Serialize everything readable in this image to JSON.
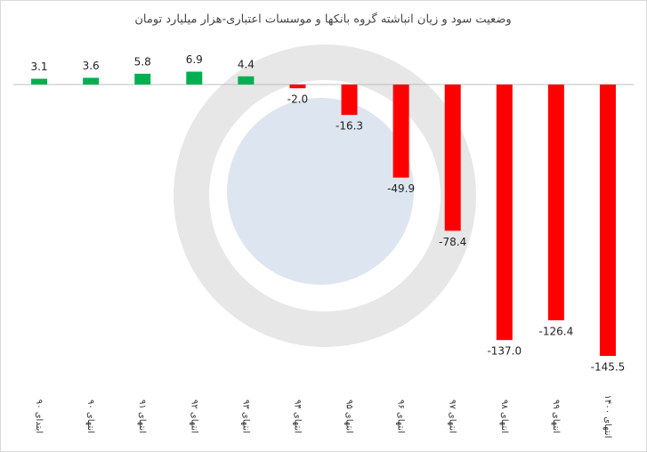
{
  "chart_data": {
    "type": "bar",
    "title": "وضعیت سود و زیان انباشته گروه بانکها و موسسات اعتباری-هزار میلیارد تومان",
    "categories": [
      "ابتدای ۹۰",
      "انتهای ۹۰",
      "انتهای ۹۱",
      "انتهای ۹۲",
      "انتهای ۹۳",
      "انتهای ۹۴",
      "انتهای ۹۵",
      "انتهای ۹۶",
      "انتهای ۹۷",
      "انتهای ۹۸",
      "انتهای ۹۹",
      "انتهای ۱۴۰۰"
    ],
    "values": [
      3.1,
      3.6,
      5.8,
      6.9,
      4.4,
      -2.0,
      -16.3,
      -49.9,
      -78.4,
      -137.0,
      -126.4,
      -145.5
    ],
    "value_labels": [
      "3.1",
      "3.6",
      "5.8",
      "6.9",
      "4.4",
      "-2.0",
      "-16.3",
      "-49.9",
      "-78.4",
      "-137.0",
      "-126.4",
      "-145.5"
    ],
    "positive_color": "#00b050",
    "negative_color": "#ff0000"
  }
}
